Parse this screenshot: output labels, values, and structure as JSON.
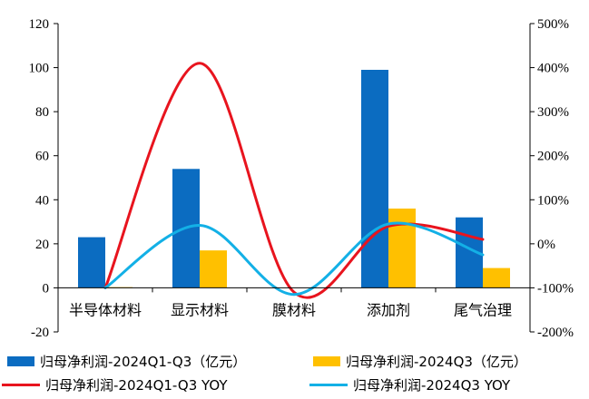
{
  "chart_data": {
    "type": "bar",
    "categories": [
      "半导体材料",
      "显示材料",
      "膜材料",
      "添加剂",
      "尾气治理"
    ],
    "y_left": {
      "ylim": [
        -20,
        120
      ],
      "ticks": [
        "-20",
        "0",
        "20",
        "40",
        "60",
        "80",
        "100",
        "120"
      ],
      "tick_values": [
        -20,
        0,
        20,
        40,
        60,
        80,
        100,
        120
      ]
    },
    "y_right": {
      "ylim": [
        -200,
        500
      ],
      "ticks": [
        "-200%",
        "-100%",
        "0%",
        "100%",
        "200%",
        "300%",
        "400%",
        "500%"
      ],
      "tick_values": [
        -200,
        -100,
        0,
        100,
        200,
        300,
        400,
        500
      ]
    },
    "series": [
      {
        "name": "归母净利润-2024Q1-Q3（亿元）",
        "kind": "bar",
        "axis": "left",
        "color": "#0B6CC1",
        "values": [
          23,
          54,
          0,
          99,
          32
        ]
      },
      {
        "name": "归母净利润-2024Q3（亿元）",
        "kind": "bar",
        "axis": "left",
        "color": "#FFC000",
        "values": [
          0.3,
          17,
          0,
          36,
          9
        ]
      },
      {
        "name": "归母净利润-2024Q1-Q3 YOY",
        "kind": "line",
        "axis": "right",
        "color": "#E8141E",
        "values": [
          -100,
          410,
          -110,
          40,
          10
        ]
      },
      {
        "name": "归母净利润-2024Q3 YOY",
        "kind": "line",
        "axis": "right",
        "color": "#13B0E6",
        "values": [
          -100,
          42,
          -115,
          45,
          -25
        ]
      }
    ],
    "grid": false,
    "legend": "bottom"
  },
  "colors": {
    "axis": "#000000"
  },
  "legend_items": [
    {
      "label": "归母净利润-2024Q1-Q3（亿元）"
    },
    {
      "label": "归母净利润-2024Q3（亿元）"
    },
    {
      "label": "归母净利润-2024Q1-Q3 YOY"
    },
    {
      "label": "归母净利润-2024Q3 YOY"
    }
  ]
}
